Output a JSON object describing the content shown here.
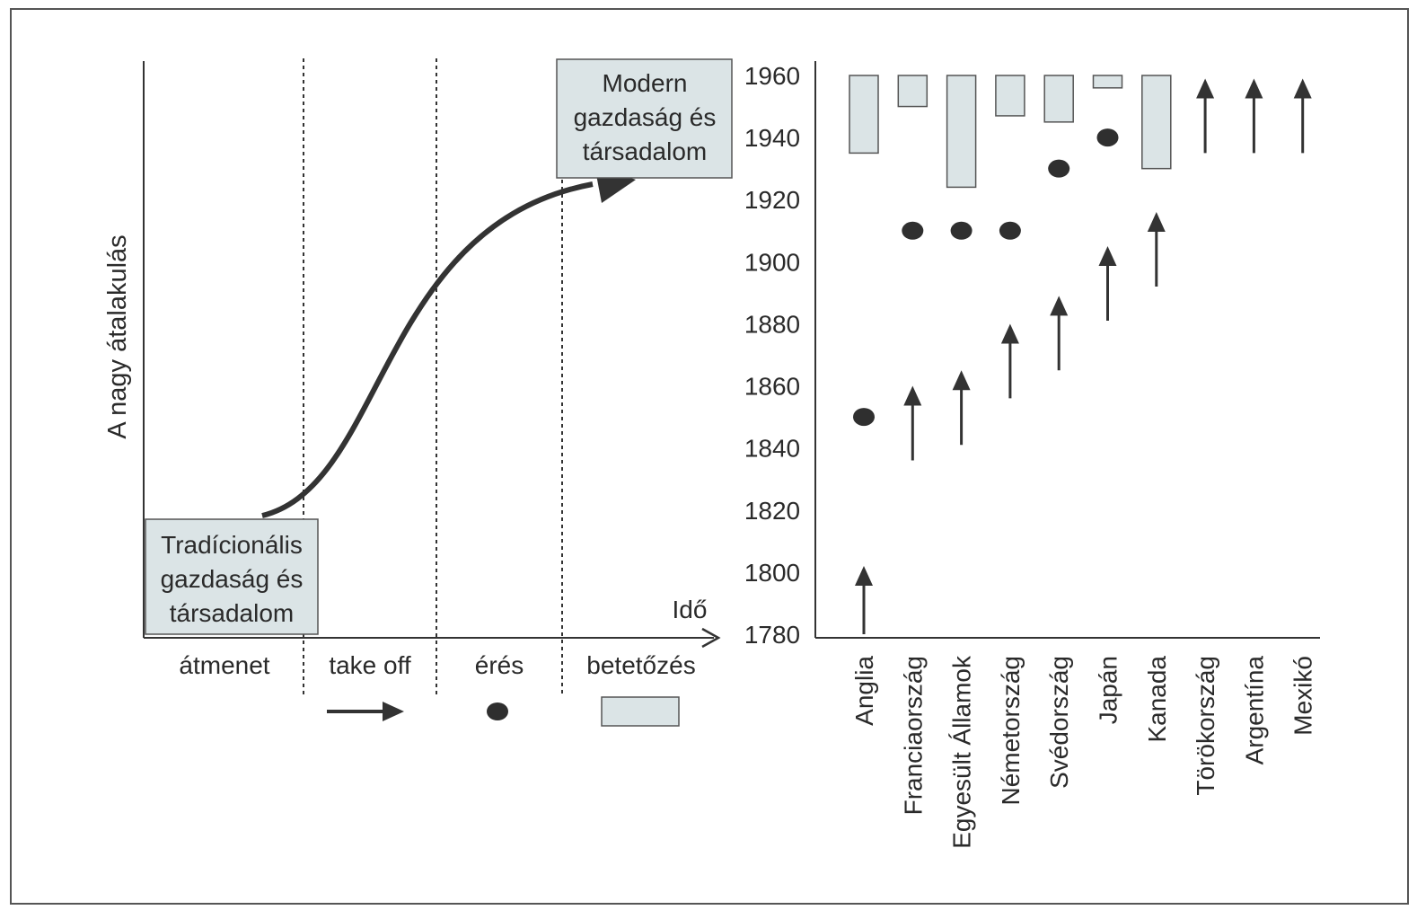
{
  "left_diagram": {
    "y_axis_label": "A nagy átalakulás",
    "x_axis_label": "Idő",
    "start_box_lines": [
      "Tradícionális",
      "gazdaság és",
      "társadalom"
    ],
    "end_box_lines": [
      "Modern",
      "gazdaság és",
      "társadalom"
    ],
    "stages": [
      "átmenet",
      "take off",
      "érés",
      "betetőzés"
    ]
  },
  "chart_data": {
    "type": "timeline",
    "y_ticks": [
      1780,
      1800,
      1820,
      1840,
      1860,
      1880,
      1900,
      1920,
      1940,
      1960
    ],
    "ylim": [
      1780,
      1960
    ],
    "categories": [
      "Anglia",
      "Franciaország",
      "Egyesült Államok",
      "Németország",
      "Svédország",
      "Japán",
      "Kanada",
      "Törökország",
      "Argentína",
      "Mexikó"
    ],
    "countries": [
      {
        "name": "Anglia",
        "take_off": [
          1780,
          1802
        ],
        "maturity": 1850,
        "mass_consumption": [
          1935,
          1960
        ]
      },
      {
        "name": "Franciaország",
        "take_off": [
          1836,
          1860
        ],
        "maturity": 1910,
        "mass_consumption": [
          1950,
          1960
        ]
      },
      {
        "name": "Egyesült Államok",
        "take_off": [
          1841,
          1865
        ],
        "maturity": 1910,
        "mass_consumption": [
          1924,
          1960
        ]
      },
      {
        "name": "Németország",
        "take_off": [
          1856,
          1880
        ],
        "maturity": 1910,
        "mass_consumption": [
          1947,
          1960
        ]
      },
      {
        "name": "Svédország",
        "take_off": [
          1865,
          1889
        ],
        "maturity": 1930,
        "mass_consumption": [
          1945,
          1960
        ]
      },
      {
        "name": "Japán",
        "take_off": [
          1881,
          1905
        ],
        "maturity": 1940,
        "mass_consumption": [
          1956,
          1960
        ]
      },
      {
        "name": "Kanada",
        "take_off": [
          1892,
          1916
        ],
        "maturity": null,
        "mass_consumption": [
          1930,
          1960
        ]
      },
      {
        "name": "Törökország",
        "take_off": [
          1935,
          1959
        ],
        "maturity": null,
        "mass_consumption": null
      },
      {
        "name": "Argentína",
        "take_off": [
          1935,
          1959
        ],
        "maturity": null,
        "mass_consumption": null
      },
      {
        "name": "Mexikó",
        "take_off": [
          1935,
          1959
        ],
        "maturity": null,
        "mass_consumption": null
      }
    ]
  }
}
